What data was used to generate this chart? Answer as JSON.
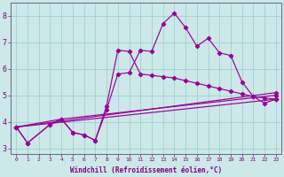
{
  "xlabel": "Windchill (Refroidissement éolien,°C)",
  "background_color": "#cce8e8",
  "grid_color": "#99cccc",
  "line_color": "#990099",
  "xlim": [
    -0.5,
    23.5
  ],
  "ylim": [
    2.8,
    8.5
  ],
  "yticks": [
    3,
    4,
    5,
    6,
    7,
    8
  ],
  "xtick_labels": [
    "0",
    "1",
    "2",
    "3",
    "4",
    "5",
    "6",
    "7",
    "8",
    "9",
    "10",
    "11",
    "12",
    "13",
    "14",
    "15",
    "16",
    "17",
    "18",
    "19",
    "20",
    "21",
    "22",
    "23"
  ],
  "line1_x": [
    0,
    1,
    3,
    4,
    5,
    6,
    7,
    8,
    9,
    10,
    11,
    12,
    13,
    14,
    15,
    16,
    17,
    18,
    19,
    20,
    21,
    22,
    23
  ],
  "line1_y": [
    3.8,
    3.2,
    3.9,
    4.1,
    3.6,
    3.5,
    3.3,
    4.6,
    6.7,
    6.65,
    5.8,
    5.75,
    5.7,
    5.65,
    5.55,
    5.45,
    5.35,
    5.25,
    5.15,
    5.05,
    4.95,
    4.9,
    4.85
  ],
  "line2_x": [
    0,
    1,
    3,
    4,
    5,
    6,
    7,
    8,
    9,
    10,
    11,
    12,
    13,
    14,
    15,
    16,
    17,
    18,
    19,
    20,
    21,
    22,
    23
  ],
  "line2_y": [
    3.8,
    3.2,
    3.9,
    4.1,
    3.6,
    3.5,
    3.3,
    4.45,
    5.8,
    5.85,
    6.7,
    6.65,
    7.7,
    8.1,
    7.55,
    6.85,
    7.15,
    6.6,
    6.5,
    5.5,
    4.95,
    4.7,
    4.85
  ],
  "trend1_x": [
    0,
    23
  ],
  "trend1_y": [
    3.8,
    4.85
  ],
  "trend2_x": [
    0,
    23
  ],
  "trend2_y": [
    3.8,
    5.1
  ],
  "trend3_x": [
    0,
    4,
    23
  ],
  "trend3_y": [
    3.8,
    4.1,
    5.0
  ],
  "xlabel_fontsize": 5.5,
  "tick_fontsize_x": 4.5,
  "tick_fontsize_y": 6
}
